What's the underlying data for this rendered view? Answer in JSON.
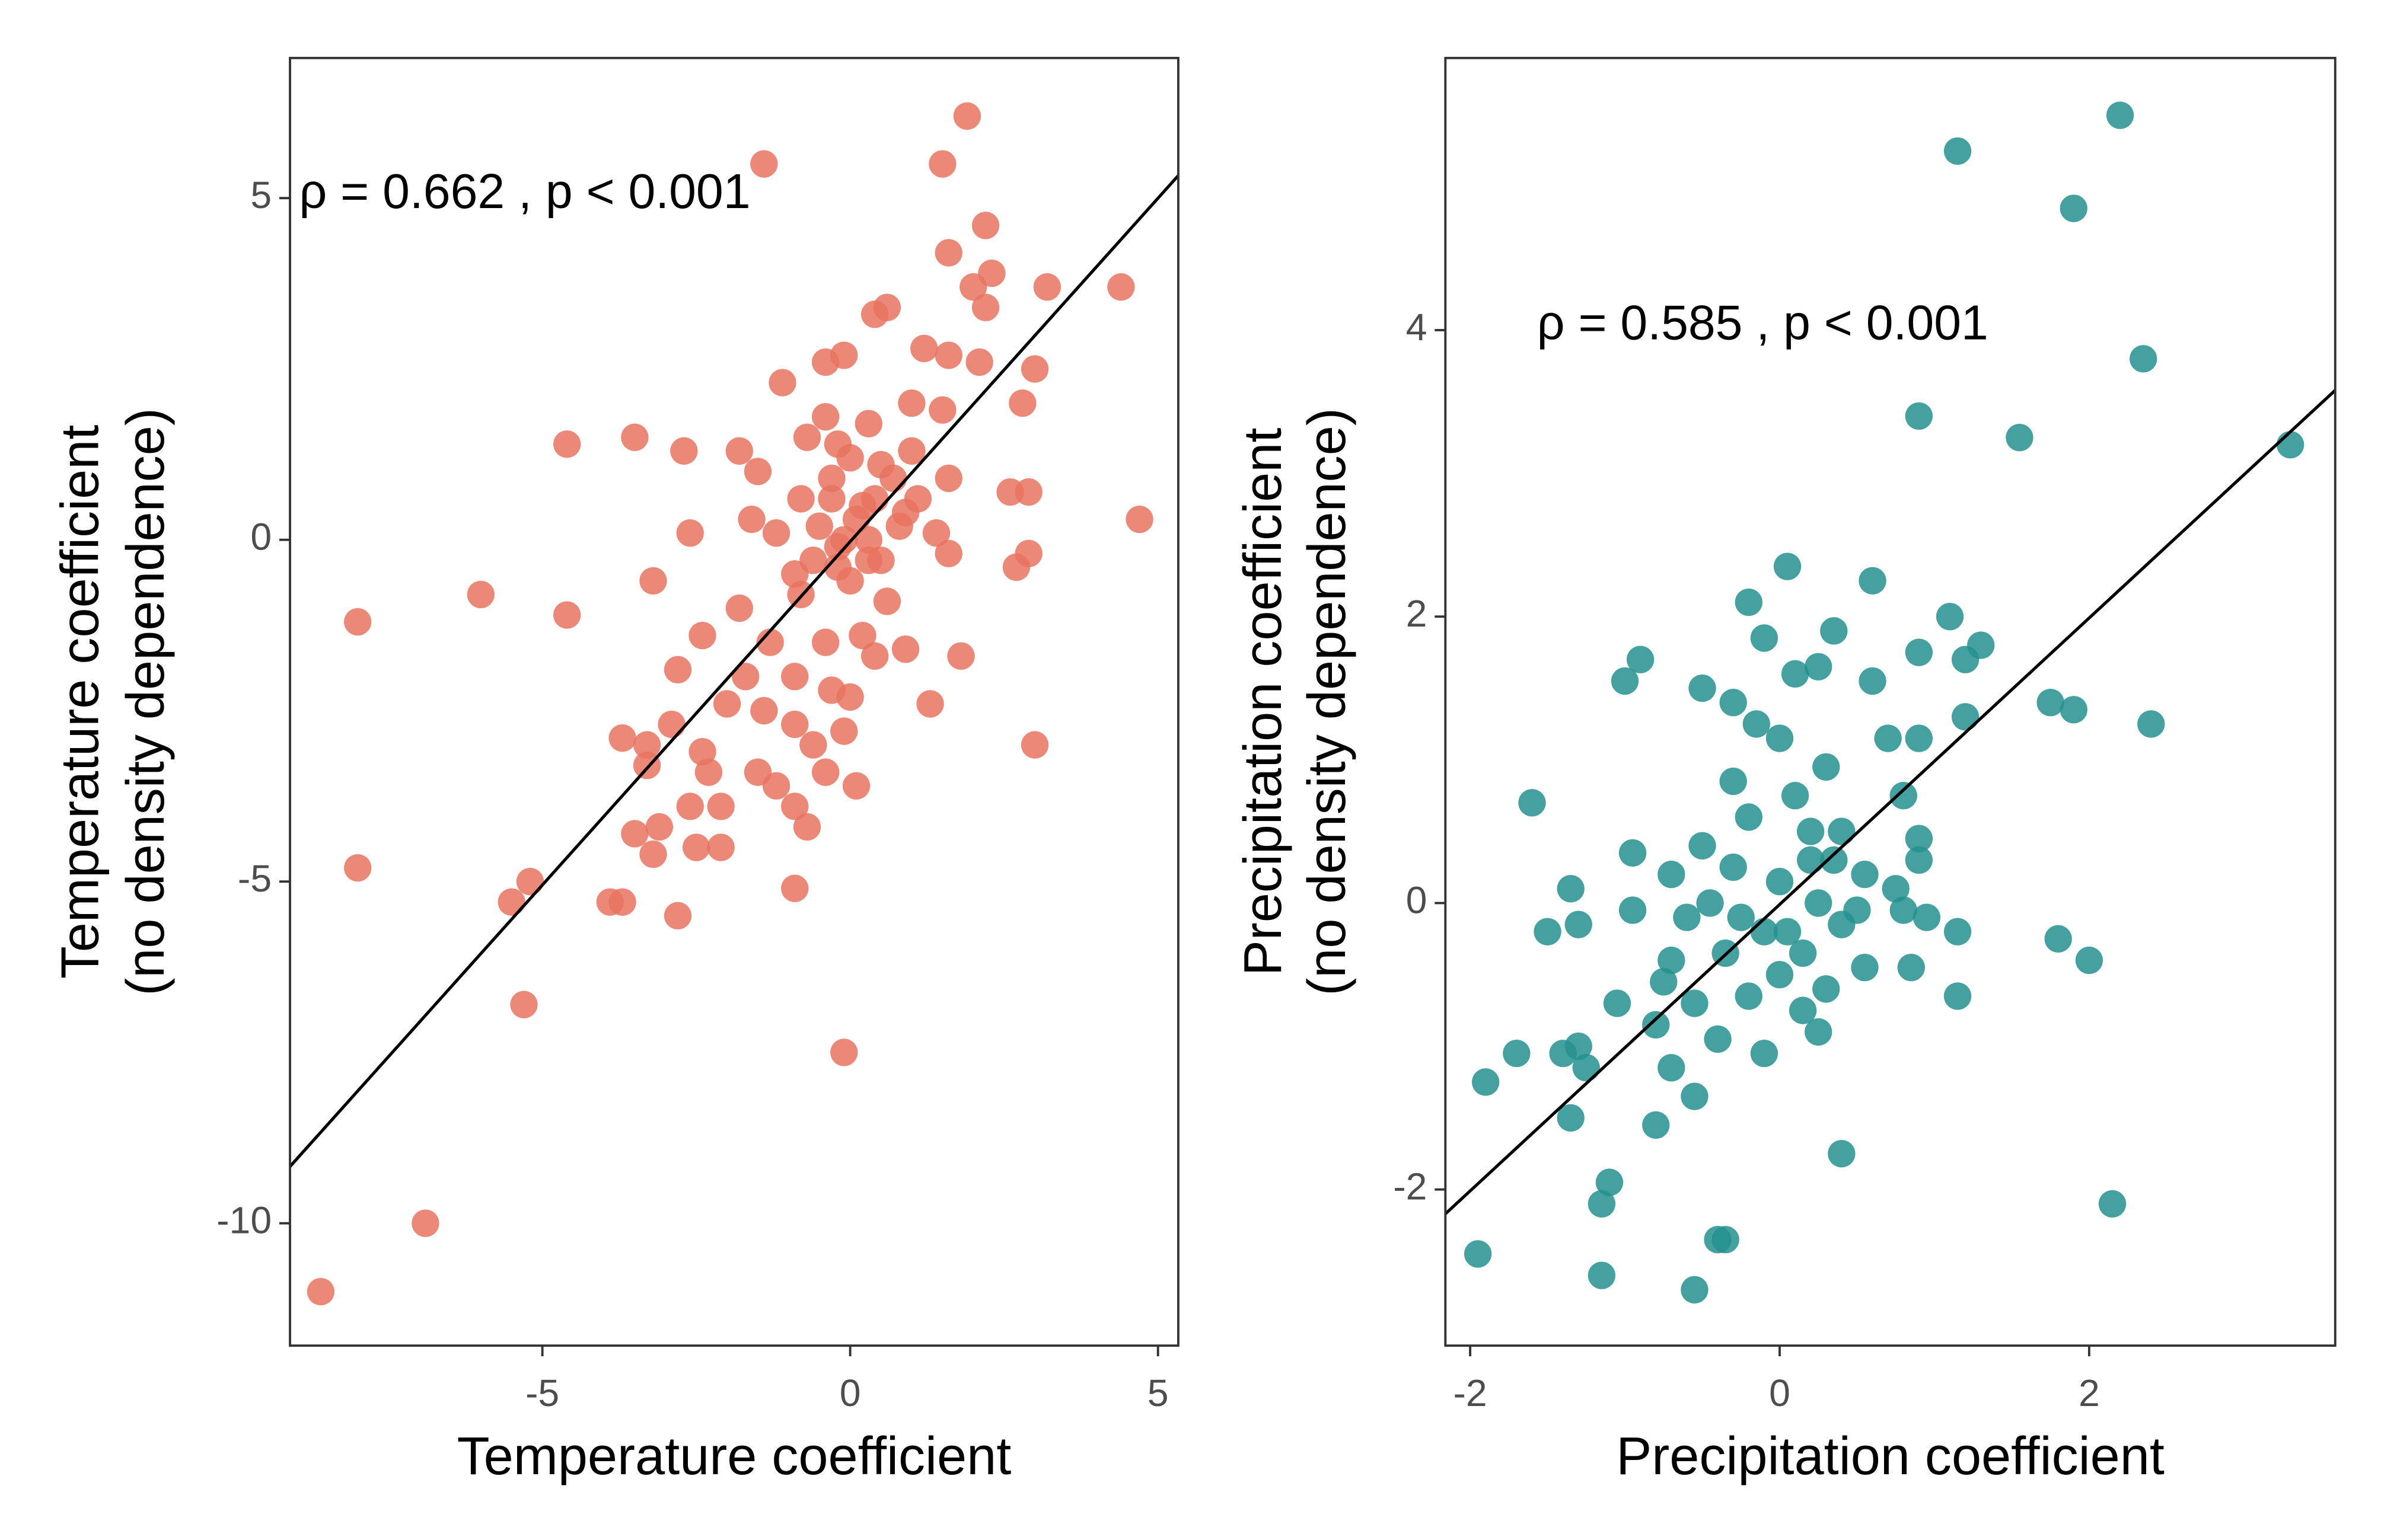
{
  "chart_data": [
    {
      "type": "scatter",
      "x_label": "Temperature coefficient",
      "y_label": [
        "Temperature coefficient",
        "(no density dependence)"
      ],
      "annotation": "ρ = 0.662 , p < 0.001",
      "color": "#e8735f",
      "xlim": [
        -9.1,
        5.33
      ],
      "ylim": [
        -11.79,
        7.05
      ],
      "xticks": [
        -5,
        0,
        5
      ],
      "yticks": [
        -10,
        -5,
        0,
        5
      ],
      "x": [
        1.9,
        -1.4,
        1.5,
        1.6,
        2.2,
        2.3,
        2.0,
        2.2,
        3.2,
        4.4,
        0.6,
        0.4,
        1.2,
        1.6,
        2.1,
        3.0,
        -0.4,
        -0.1,
        -1.1,
        2.8,
        1.0,
        1.5,
        -0.4,
        0.3,
        -0.7,
        -0.2,
        -4.6,
        -3.5,
        -2.7,
        -1.8,
        -1.5,
        0.0,
        0.5,
        1.0,
        1.6,
        2.6,
        2.9,
        -0.8,
        -0.3,
        0.2,
        -1.6,
        -1.2,
        -2.6,
        -0.5,
        0.3,
        0.8,
        1.4,
        1.6,
        4.7,
        2.9,
        2.7,
        -6.0,
        -3.2,
        -8.0,
        -4.6,
        -1.8,
        -0.8,
        -0.2,
        0.6,
        0.2,
        -1.3,
        -2.4,
        -2.8,
        -1.7,
        -0.9,
        -0.4,
        0.4,
        0.9,
        1.8,
        -2.0,
        -1.4,
        -0.9,
        -0.3,
        0.0,
        1.3,
        -3.7,
        -2.9,
        -3.3,
        -2.4,
        -1.5,
        -0.6,
        -0.1,
        3.0,
        -3.3,
        -2.3,
        -1.2,
        -0.4,
        0.1,
        -2.6,
        -3.5,
        -3.1,
        -2.1,
        -0.9,
        -0.7,
        -2.5,
        -3.2,
        -2.1,
        -8.0,
        -0.9,
        -5.2,
        -5.5,
        -3.9,
        -3.7,
        -2.8,
        -5.3,
        -0.1,
        -6.9,
        -8.6,
        0.1,
        -0.2,
        0.4,
        0.7,
        -0.6,
        0.0,
        0.5,
        -0.3,
        0.9,
        -0.9,
        -0.1,
        0.3,
        1.1
      ],
      "y": [
        6.2,
        5.5,
        5.5,
        4.2,
        4.6,
        3.9,
        3.7,
        3.4,
        3.7,
        3.7,
        3.4,
        3.3,
        2.8,
        2.7,
        2.6,
        2.5,
        2.6,
        2.7,
        2.3,
        2.0,
        2.0,
        1.9,
        1.8,
        1.7,
        1.5,
        1.4,
        1.4,
        1.5,
        1.3,
        1.3,
        1.0,
        1.2,
        1.1,
        1.3,
        0.9,
        0.7,
        0.7,
        0.6,
        0.6,
        0.5,
        0.3,
        0.1,
        0.1,
        0.2,
        0.0,
        0.2,
        0.1,
        -0.2,
        0.3,
        -0.2,
        -0.4,
        -0.8,
        -0.6,
        -1.2,
        -1.1,
        -1.0,
        -0.8,
        -0.4,
        -0.9,
        -1.4,
        -1.5,
        -1.4,
        -1.9,
        -2.0,
        -2.0,
        -1.5,
        -1.7,
        -1.6,
        -1.7,
        -2.4,
        -2.5,
        -2.7,
        -2.2,
        -2.3,
        -2.4,
        -2.9,
        -2.7,
        -3.0,
        -3.1,
        -3.4,
        -3.0,
        -2.8,
        -3.0,
        -3.3,
        -3.4,
        -3.6,
        -3.4,
        -3.6,
        -3.9,
        -4.3,
        -4.2,
        -3.9,
        -3.9,
        -4.2,
        -4.5,
        -4.6,
        -4.5,
        -4.8,
        -5.1,
        -5.0,
        -5.3,
        -5.3,
        -5.3,
        -5.5,
        -6.8,
        -7.5,
        -10.0,
        -11.0,
        0.3,
        -0.1,
        0.6,
        0.9,
        -0.3,
        -0.6,
        -0.3,
        0.9,
        0.4,
        -0.5,
        0.0,
        -0.3,
        0.6
      ],
      "fit_line": {
        "x": [
          -9.1,
          5.33
        ],
        "y": [
          -9.17,
          5.33
        ]
      }
    },
    {
      "type": "scatter",
      "x_label": "Precipitation coefficient",
      "y_label": [
        "Precipitation coefficient",
        "(no density dependence)"
      ],
      "annotation": "ρ = 0.585 , p < 0.001",
      "color": "#23908e",
      "xlim": [
        -2.16,
        3.59
      ],
      "ylim": [
        -3.09,
        5.9
      ],
      "xticks": [
        -2,
        0,
        2
      ],
      "yticks": [
        -2,
        0,
        2,
        4
      ],
      "x": [
        2.2,
        1.15,
        1.9,
        2.35,
        0.9,
        1.55,
        3.3,
        0.05,
        0.6,
        -0.2,
        1.1,
        0.35,
        -0.1,
        1.3,
        1.2,
        0.9,
        -0.9,
        -1.0,
        0.1,
        0.25,
        0.6,
        -0.5,
        -0.3,
        1.75,
        1.9,
        2.4,
        1.2,
        -0.15,
        0.0,
        0.7,
        0.9,
        -0.3,
        0.3,
        0.8,
        -1.6,
        -0.2,
        0.1,
        0.4,
        0.9,
        -0.95,
        -0.5,
        0.9,
        0.2,
        -0.7,
        -0.3,
        0.0,
        0.55,
        0.75,
        -1.35,
        -0.95,
        -0.25,
        0.25,
        0.5,
        0.8,
        -1.5,
        -1.3,
        -0.6,
        -0.1,
        0.4,
        0.95,
        1.15,
        1.8,
        2.0,
        -0.7,
        -0.35,
        0.15,
        0.55,
        0.85,
        -0.75,
        0.0,
        0.3,
        -1.05,
        -0.55,
        -0.2,
        0.15,
        1.15,
        -1.3,
        -1.4,
        -1.7,
        -0.8,
        -0.4,
        -0.1,
        0.25,
        -1.25,
        -0.7,
        -0.55,
        -1.9,
        -0.8,
        -1.35,
        0.4,
        -1.1,
        -1.15,
        2.15,
        -0.4,
        -0.35,
        -1.95,
        -1.15,
        -0.55,
        0.05,
        0.2,
        -0.45,
        0.35
      ],
      "y": [
        5.5,
        5.25,
        4.85,
        3.8,
        3.4,
        3.25,
        3.2,
        2.35,
        2.25,
        2.1,
        2.0,
        1.9,
        1.85,
        1.8,
        1.7,
        1.75,
        1.7,
        1.55,
        1.6,
        1.65,
        1.55,
        1.5,
        1.4,
        1.4,
        1.35,
        1.25,
        1.3,
        1.25,
        1.15,
        1.15,
        1.15,
        0.85,
        0.95,
        0.75,
        0.7,
        0.6,
        0.75,
        0.5,
        0.45,
        0.35,
        0.4,
        0.3,
        0.3,
        0.2,
        0.25,
        0.15,
        0.2,
        0.1,
        0.1,
        -0.05,
        -0.1,
        0.0,
        -0.05,
        -0.05,
        -0.2,
        -0.15,
        -0.1,
        -0.2,
        -0.15,
        -0.1,
        -0.2,
        -0.25,
        -0.4,
        -0.4,
        -0.35,
        -0.35,
        -0.45,
        -0.45,
        -0.55,
        -0.5,
        -0.6,
        -0.7,
        -0.7,
        -0.65,
        -0.75,
        -0.65,
        -1.0,
        -1.05,
        -1.05,
        -0.85,
        -0.95,
        -1.05,
        -0.9,
        -1.15,
        -1.15,
        -1.35,
        -1.25,
        -1.55,
        -1.5,
        -1.75,
        -1.95,
        -2.1,
        -2.1,
        -2.35,
        -2.35,
        -2.45,
        -2.6,
        -2.7,
        -0.2,
        0.5,
        0.0,
        0.3
      ],
      "fit_line": {
        "x": [
          -2.16,
          3.59
        ],
        "y": [
          -2.17,
          3.58
        ]
      }
    }
  ]
}
